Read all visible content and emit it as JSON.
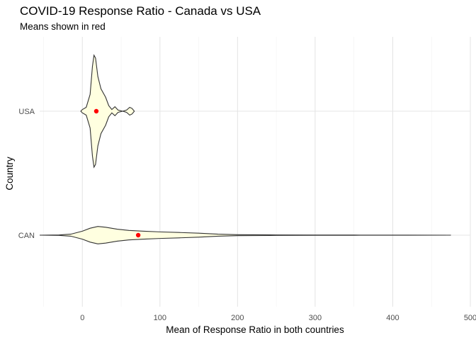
{
  "chart_data": {
    "type": "violin",
    "title": "COVID-19 Response Ratio - Canada vs USA",
    "subtitle": "Means shown in red",
    "xlabel": "Mean of Response Ratio in both countries",
    "ylabel": "Country",
    "xlim": [
      -55,
      500
    ],
    "x_ticks": [
      0,
      100,
      200,
      300,
      400,
      500
    ],
    "categories": [
      "CAN",
      "USA"
    ],
    "fill_color": "#FFFFE0",
    "mean_color": "#FF0000",
    "grid": true,
    "series": [
      {
        "category": "USA",
        "mean": 18,
        "density": [
          [
            -2,
            0.0
          ],
          [
            0,
            0.03
          ],
          [
            5,
            0.07
          ],
          [
            10,
            0.3
          ],
          [
            13,
            0.8
          ],
          [
            15,
            1.0
          ],
          [
            17,
            0.95
          ],
          [
            20,
            0.62
          ],
          [
            24,
            0.4
          ],
          [
            30,
            0.25
          ],
          [
            34,
            0.1
          ],
          [
            38,
            0.03
          ],
          [
            42,
            0.08
          ],
          [
            46,
            0.02
          ],
          [
            52,
            0.0
          ],
          [
            57,
            0.02
          ],
          [
            61,
            0.07
          ],
          [
            64,
            0.05
          ],
          [
            67,
            0.0
          ]
        ]
      },
      {
        "category": "CAN",
        "mean": 72,
        "density": [
          [
            -55,
            0.0
          ],
          [
            -30,
            0.02
          ],
          [
            -15,
            0.1
          ],
          [
            0,
            0.4
          ],
          [
            10,
            0.7
          ],
          [
            20,
            0.88
          ],
          [
            30,
            0.8
          ],
          [
            45,
            0.6
          ],
          [
            60,
            0.48
          ],
          [
            80,
            0.4
          ],
          [
            100,
            0.33
          ],
          [
            125,
            0.27
          ],
          [
            150,
            0.2
          ],
          [
            175,
            0.1
          ],
          [
            200,
            0.05
          ],
          [
            250,
            0.025
          ],
          [
            300,
            0.015
          ],
          [
            350,
            0.01
          ],
          [
            420,
            0.005
          ],
          [
            475,
            0.0
          ]
        ]
      }
    ]
  }
}
